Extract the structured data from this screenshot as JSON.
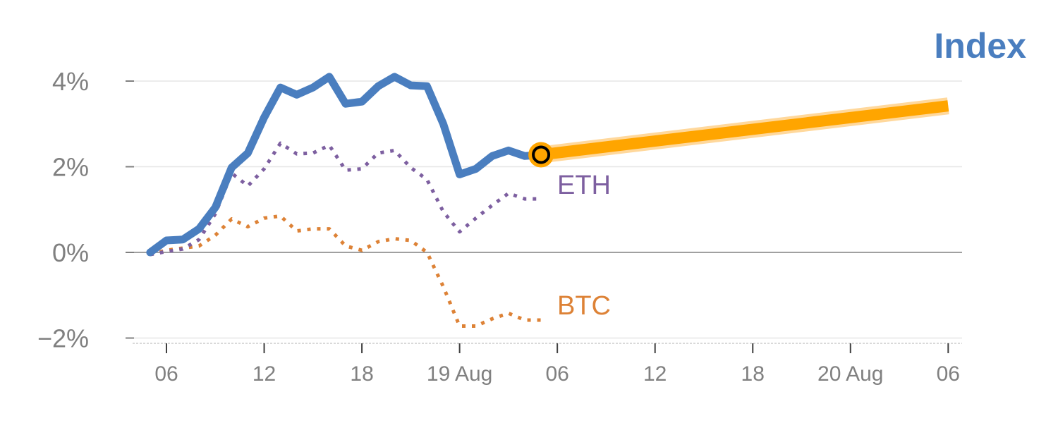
{
  "chart_data": {
    "type": "line",
    "title": "Index",
    "xlabel": "",
    "ylabel": "",
    "y_unit": "%",
    "ylim": [
      -2.1,
      4.3
    ],
    "y_ticks": [
      4,
      2,
      0,
      -2
    ],
    "y_tick_labels": [
      "4%",
      "2%",
      "0%",
      "−2%"
    ],
    "x_range": [
      "2024-08-18 04:00",
      "2024-08-21 08:00"
    ],
    "x_ticks": [
      "2024-08-18 06:00",
      "2024-08-18 12:00",
      "2024-08-18 18:00",
      "2024-08-19 00:00",
      "2024-08-19 06:00",
      "2024-08-19 12:00",
      "2024-08-19 18:00",
      "2024-08-20 00:00",
      "2024-08-20 06:00"
    ],
    "x_tick_labels": [
      "06",
      "12",
      "18",
      "19 Aug",
      "06",
      "12",
      "18",
      "20 Aug",
      "06"
    ],
    "grid": true,
    "series": [
      {
        "name": "Index",
        "style": "solid",
        "color": "#4a7ebf",
        "x": [
          "2024-08-18 05:00",
          "2024-08-18 06:00",
          "2024-08-18 07:00",
          "2024-08-18 08:00",
          "2024-08-18 09:00",
          "2024-08-18 10:00",
          "2024-08-18 11:00",
          "2024-08-18 12:00",
          "2024-08-18 13:00",
          "2024-08-18 14:00",
          "2024-08-18 15:00",
          "2024-08-18 16:00",
          "2024-08-18 17:00",
          "2024-08-18 18:00",
          "2024-08-18 19:00",
          "2024-08-18 20:00",
          "2024-08-18 21:00",
          "2024-08-18 22:00",
          "2024-08-18 23:00",
          "2024-08-19 00:00",
          "2024-08-19 01:00",
          "2024-08-19 02:00",
          "2024-08-19 03:00",
          "2024-08-19 04:00",
          "2024-08-19 05:00"
        ],
        "values": [
          0.0,
          0.28,
          0.3,
          0.55,
          1.05,
          1.98,
          2.32,
          3.15,
          3.85,
          3.68,
          3.85,
          4.1,
          3.47,
          3.52,
          3.88,
          4.1,
          3.9,
          3.88,
          3.0,
          1.82,
          1.95,
          2.25,
          2.38,
          2.25,
          2.28
        ]
      },
      {
        "name": "ETH",
        "style": "dotted",
        "color": "#7d5fa0",
        "x": [
          "2024-08-18 05:00",
          "2024-08-18 06:00",
          "2024-08-18 07:00",
          "2024-08-18 08:00",
          "2024-08-18 09:00",
          "2024-08-18 10:00",
          "2024-08-18 11:00",
          "2024-08-18 12:00",
          "2024-08-18 13:00",
          "2024-08-18 14:00",
          "2024-08-18 15:00",
          "2024-08-18 16:00",
          "2024-08-18 17:00",
          "2024-08-18 18:00",
          "2024-08-18 19:00",
          "2024-08-18 20:00",
          "2024-08-18 21:00",
          "2024-08-18 22:00",
          "2024-08-18 23:00",
          "2024-08-19 00:00",
          "2024-08-19 01:00",
          "2024-08-19 02:00",
          "2024-08-19 03:00",
          "2024-08-19 04:00",
          "2024-08-19 05:00"
        ],
        "values": [
          -0.05,
          0.02,
          0.08,
          0.3,
          0.9,
          1.85,
          1.55,
          1.95,
          2.55,
          2.3,
          2.32,
          2.5,
          1.92,
          1.95,
          2.32,
          2.38,
          1.98,
          1.7,
          0.95,
          0.48,
          0.8,
          1.1,
          1.38,
          1.25,
          1.25
        ]
      },
      {
        "name": "BTC",
        "style": "dotted",
        "color": "#dd8236",
        "x": [
          "2024-08-18 05:00",
          "2024-08-18 06:00",
          "2024-08-18 07:00",
          "2024-08-18 08:00",
          "2024-08-18 09:00",
          "2024-08-18 10:00",
          "2024-08-18 11:00",
          "2024-08-18 12:00",
          "2024-08-18 13:00",
          "2024-08-18 14:00",
          "2024-08-18 15:00",
          "2024-08-18 16:00",
          "2024-08-18 17:00",
          "2024-08-18 18:00",
          "2024-08-18 19:00",
          "2024-08-18 20:00",
          "2024-08-18 21:00",
          "2024-08-18 22:00",
          "2024-08-18 23:00",
          "2024-08-19 00:00",
          "2024-08-19 01:00",
          "2024-08-19 02:00",
          "2024-08-19 03:00",
          "2024-08-19 04:00",
          "2024-08-19 05:00"
        ],
        "values": [
          -0.05,
          0.05,
          0.1,
          0.15,
          0.4,
          0.78,
          0.6,
          0.8,
          0.85,
          0.5,
          0.55,
          0.55,
          0.15,
          0.05,
          0.25,
          0.32,
          0.28,
          0.0,
          -0.8,
          -1.72,
          -1.72,
          -1.55,
          -1.42,
          -1.58,
          -1.58
        ]
      },
      {
        "name": "",
        "style": "projection",
        "color": "#ffa500",
        "x": [
          "2024-08-19 05:00",
          "2024-08-20 06:00"
        ],
        "values": [
          2.28,
          3.42
        ]
      }
    ],
    "marker": {
      "x": "2024-08-19 05:00",
      "value": 2.28
    },
    "colors": {
      "title": "#4a7ebf",
      "index": "#4a7ebf",
      "eth": "#7d5fa0",
      "btc": "#dd8236",
      "projection": "#ffa500",
      "projection_glow": "#ffd89c",
      "tick_text": "#808080",
      "grid": "#e6e6e6",
      "zero_line": "#808080"
    }
  }
}
